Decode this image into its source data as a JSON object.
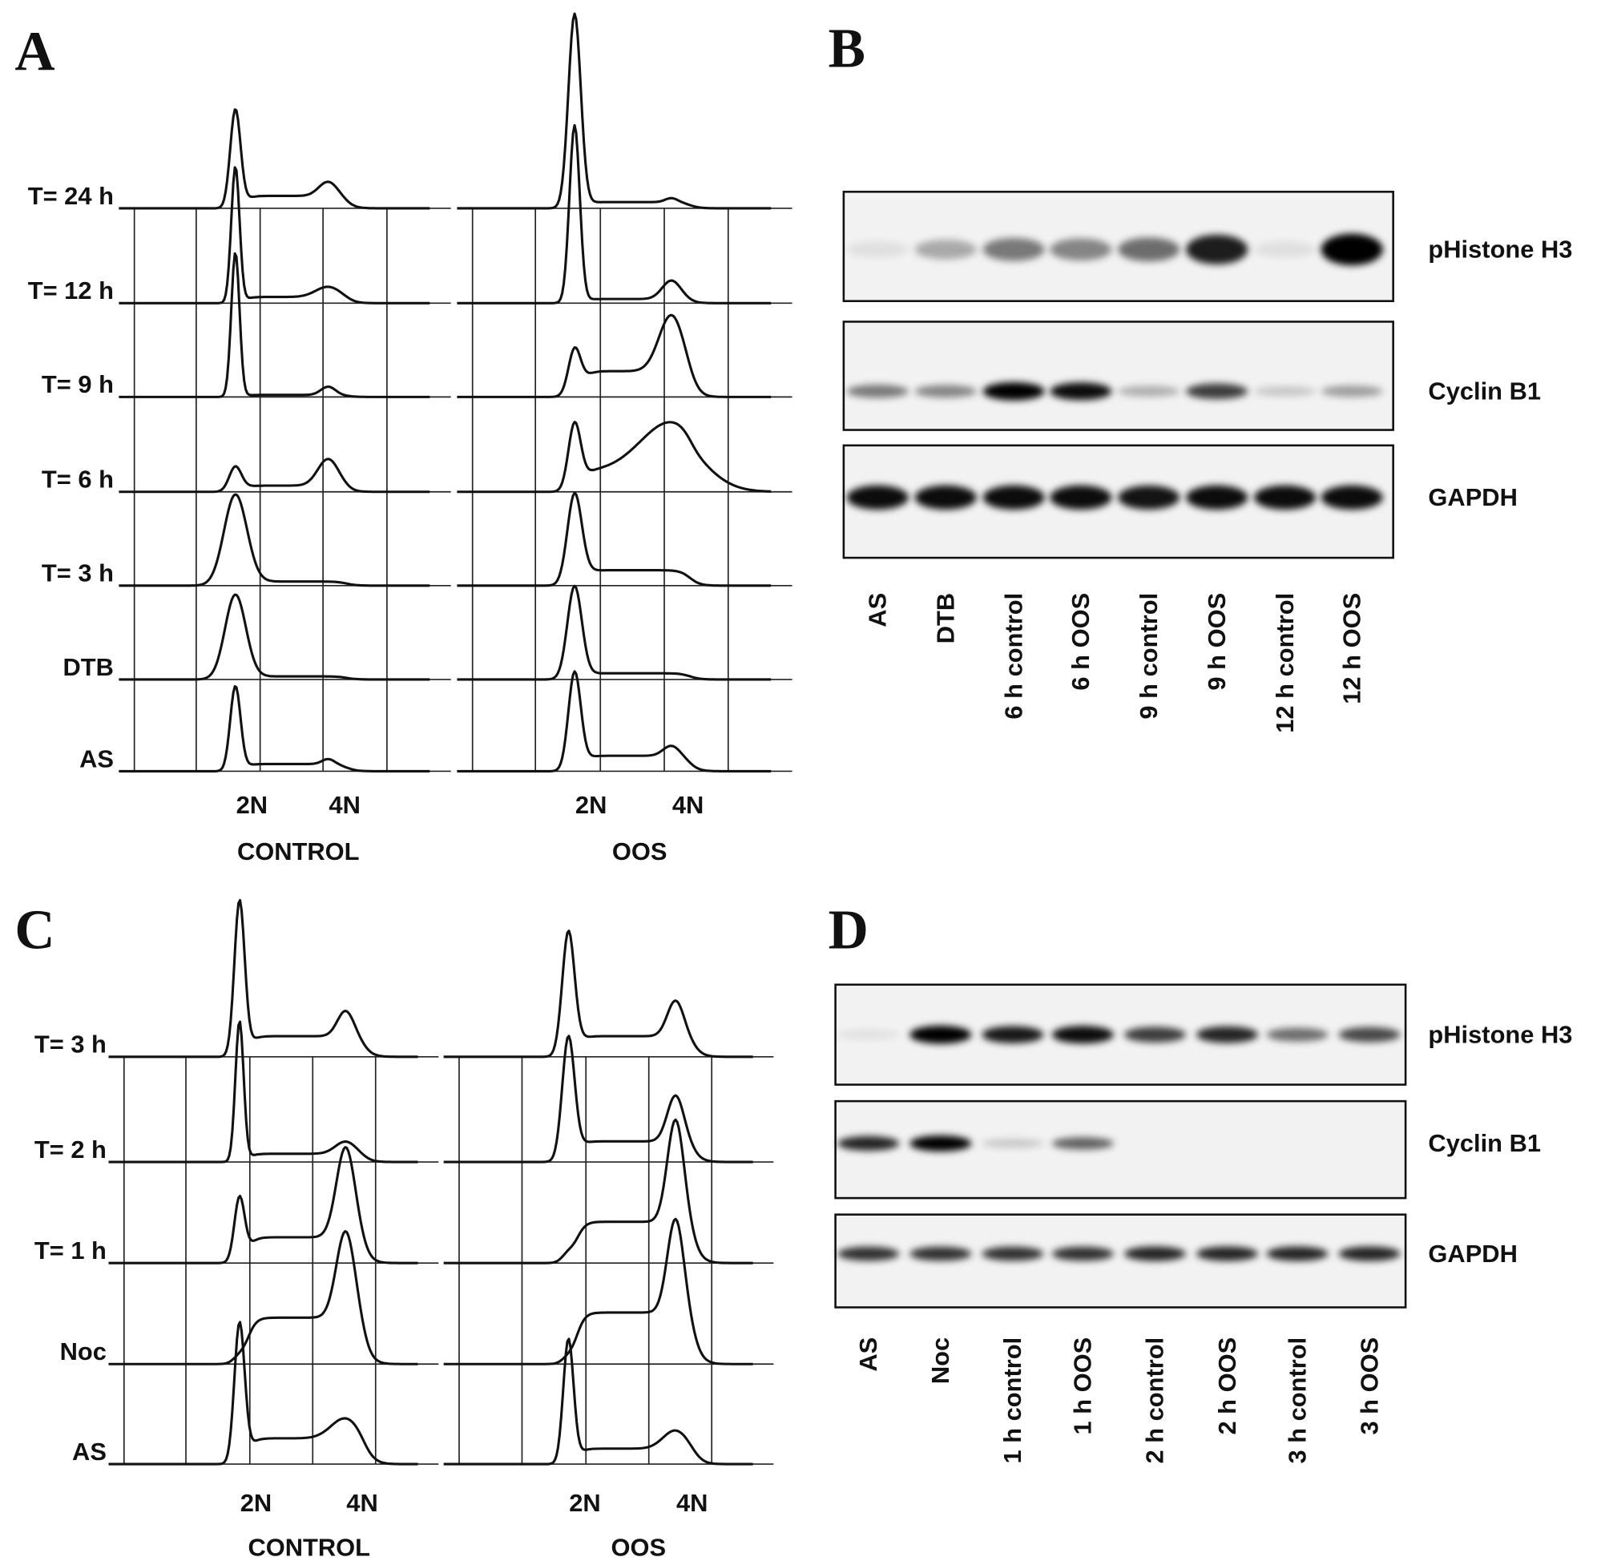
{
  "panels": [
    {
      "label": "A",
      "rows": [
        "T= 24 h",
        "T= 12 h",
        "T= 9 h",
        "T= 6 h",
        "T= 3 h",
        "DTB",
        "AS"
      ],
      "groups": [
        {
          "name": "CONTROL",
          "ticks": [
            "2N",
            "4N"
          ]
        },
        {
          "name": "OOS",
          "ticks": [
            "2N",
            "4N"
          ]
        }
      ]
    },
    {
      "label": "B",
      "blots": [
        "pHistone H3",
        "Cyclin B1",
        "GAPDH"
      ],
      "lanes": [
        "AS",
        "DTB",
        "6 h control",
        "6 h OOS",
        "9 h control",
        "9 h OOS",
        "12 h control",
        "12 h OOS"
      ]
    },
    {
      "label": "C",
      "rows": [
        "T= 3 h",
        "T= 2 h",
        "T= 1 h",
        "Noc",
        "AS"
      ],
      "groups": [
        {
          "name": "CONTROL",
          "ticks": [
            "2N",
            "4N"
          ]
        },
        {
          "name": "OOS",
          "ticks": [
            "2N",
            "4N"
          ]
        }
      ]
    },
    {
      "label": "D",
      "blots": [
        "pHistone H3",
        "Cyclin B1",
        "GAPDH"
      ],
      "lanes": [
        "AS",
        "Noc",
        "1 h control",
        "1 h OOS",
        "2 h control",
        "2 h OOS",
        "3 h control",
        "3 h OOS"
      ]
    }
  ]
}
